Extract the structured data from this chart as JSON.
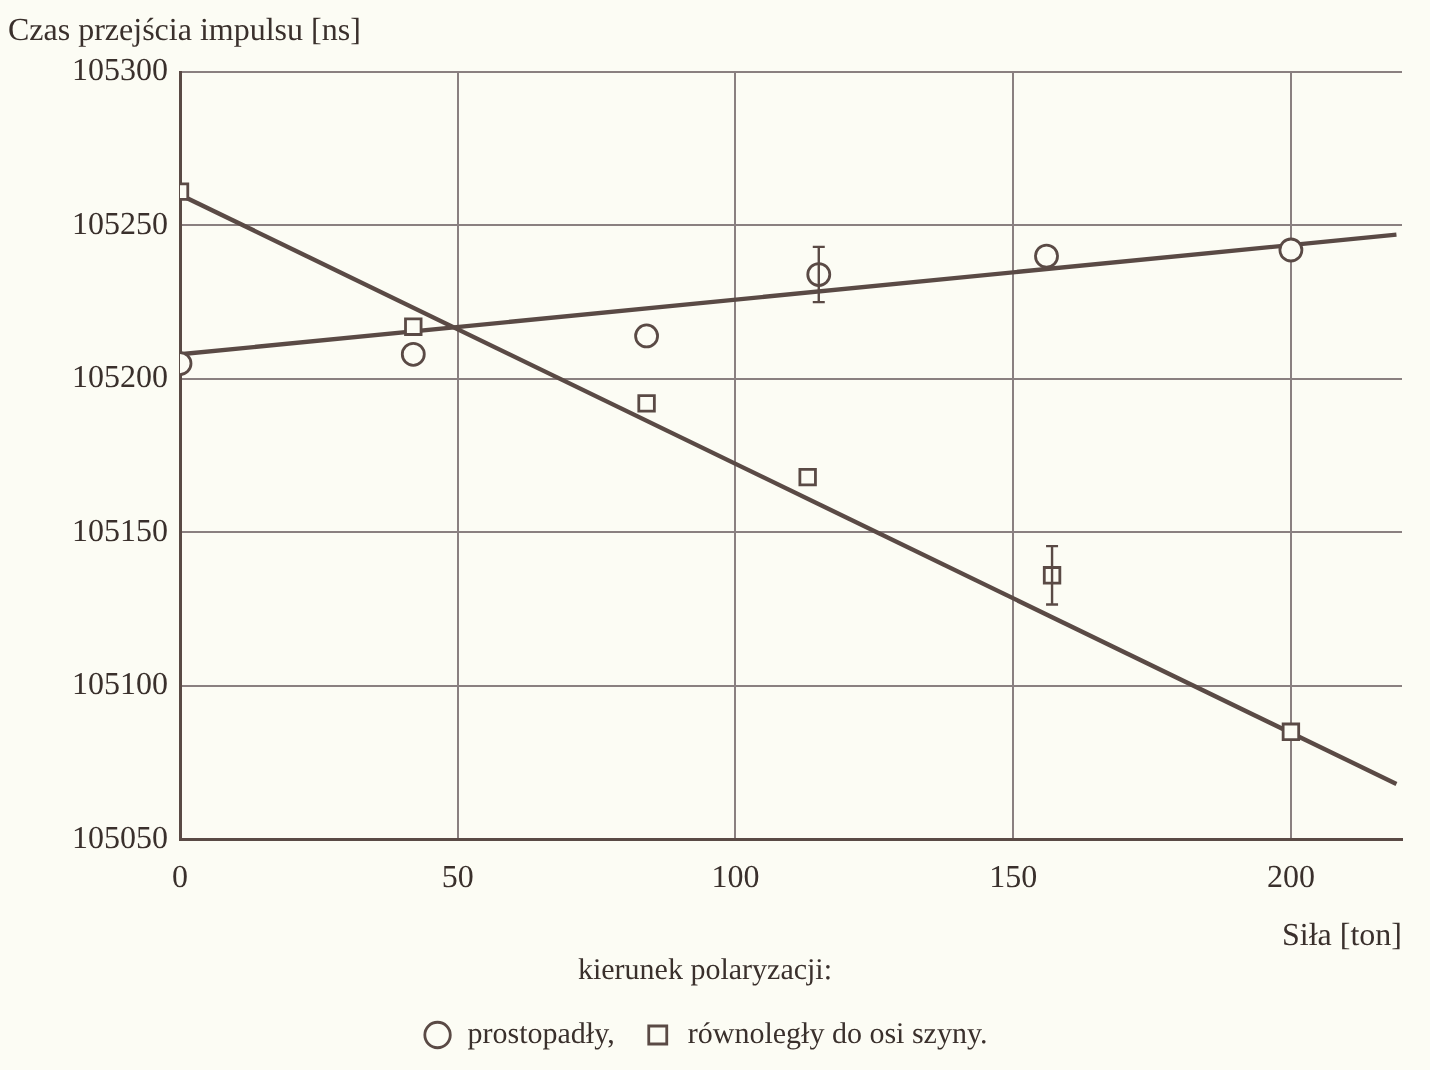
{
  "chart_data": {
    "type": "scatter",
    "ylabel": "Czas przejścia impulsu [ns]",
    "xlabel": "Siła [ton]",
    "legend_title": "kierunek polaryzacji:",
    "legend": "bottom",
    "grid": true,
    "xlim": [
      0,
      220
    ],
    "xticks": [
      0,
      50,
      100,
      150,
      200
    ],
    "ylim": [
      105050,
      105300
    ],
    "yticks": [
      105050,
      105100,
      105150,
      105200,
      105250,
      105300
    ],
    "series": [
      {
        "name": "prostopadły,",
        "type": "scatter",
        "marker": "circle",
        "color": "#5a4a45",
        "x": [
          0,
          42,
          84,
          115,
          156,
          200
        ],
        "values": [
          105205,
          105208,
          105214,
          105234,
          105240,
          105242
        ],
        "errors": [
          null,
          null,
          null,
          9,
          null,
          null
        ]
      },
      {
        "name": "równoległy do osi szyny.",
        "type": "scatter",
        "marker": "square",
        "color": "#5a4a45",
        "x": [
          0,
          42,
          84,
          113,
          157,
          200
        ],
        "values": [
          105261,
          105217,
          105192,
          105168,
          105136,
          105085
        ],
        "errors": [
          null,
          null,
          null,
          null,
          9.5,
          null
        ]
      },
      {
        "type": "line",
        "marker": "none",
        "line_style": "solid",
        "color": "#5a4a45",
        "x": [
          0,
          219
        ],
        "values": [
          105208,
          105247
        ]
      },
      {
        "type": "line",
        "marker": "none",
        "line_style": "solid",
        "color": "#5a4a45",
        "x": [
          0,
          219
        ],
        "values": [
          105260,
          105068
        ]
      }
    ]
  }
}
